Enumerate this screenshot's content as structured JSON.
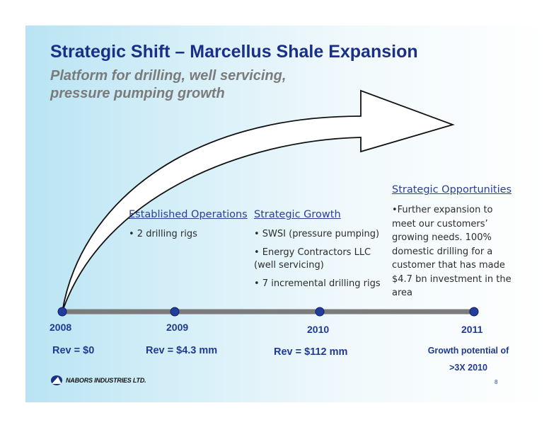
{
  "title": "Strategic Shift – Marcellus Shale Expansion",
  "subtitle": "Platform for drilling, well servicing, pressure pumping growth",
  "columns": {
    "established": {
      "heading": "Established Operations",
      "items": [
        "• 2 drilling rigs"
      ]
    },
    "growth": {
      "heading": "Strategic Growth",
      "items": [
        "• SWSI (pressure pumping)",
        "• Energy Contractors LLC (well servicing)",
        "• 7 incremental drilling rigs"
      ]
    },
    "opportunities": {
      "heading": "Strategic Opportunities",
      "text": "•Further expansion to meet our customers’ growing needs. 100% domestic drilling for a customer that has made $4.7 bn investment in the area"
    }
  },
  "timeline": [
    {
      "year": "2008",
      "revenue": "Rev = $0"
    },
    {
      "year": "2009",
      "revenue": "Rev = $4.3 mm"
    },
    {
      "year": "2010",
      "revenue": "Rev = $112 mm"
    },
    {
      "year": "2011",
      "revenue": "Growth potential of >3X 2010"
    }
  ],
  "logo": {
    "name": "NABORS INDUSTRIES LTD."
  },
  "page_number": "8",
  "colors": {
    "title": "#1a2f86",
    "subtitle": "#7b7b7b",
    "timeline_line": "#7b7b7b",
    "timeline_dot": "#233e9a",
    "background_left": "#b9e4f3",
    "background_right": "#ffffff"
  }
}
